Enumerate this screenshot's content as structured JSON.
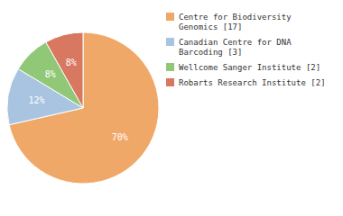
{
  "chart_data": {
    "type": "pie",
    "categories": [
      "Centre for Biodiversity\nGenomics [17]",
      "Canadian Centre for DNA\nBarcoding [3]",
      "Wellcome Sanger Institute [2]",
      "Robarts Research Institute [2]"
    ],
    "values": [
      70,
      12,
      8,
      8
    ],
    "value_labels": [
      "70%",
      "12%",
      "8%",
      "8%"
    ],
    "colors": [
      "#F0A868",
      "#A8C4E0",
      "#90C878",
      "#D87860"
    ],
    "data_labels": true,
    "legend": "right"
  }
}
